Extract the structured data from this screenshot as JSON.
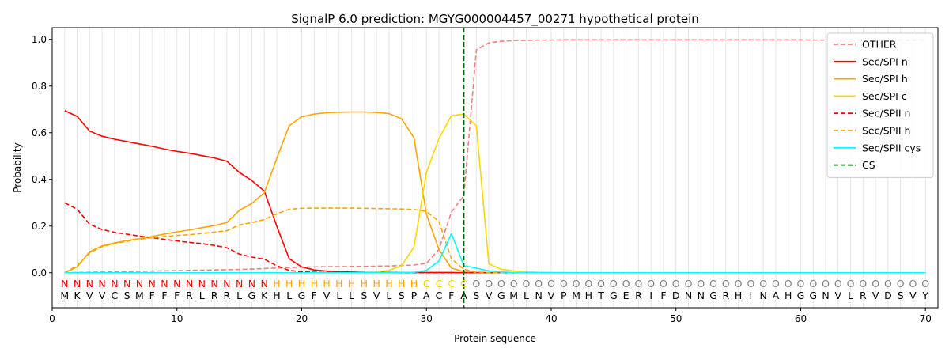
{
  "chart_data": {
    "type": "line",
    "title": "SignalP 6.0 prediction: MGYG000004457_00271 hypothetical protein",
    "xlabel": "Protein sequence",
    "ylabel": "Probability",
    "xlim": [
      0,
      71
    ],
    "ylim": [
      -0.15,
      1.05
    ],
    "x_ticks": [
      0,
      10,
      20,
      30,
      40,
      50,
      60,
      70
    ],
    "y_ticks": [
      0.0,
      0.2,
      0.4,
      0.6,
      0.8,
      1.0
    ],
    "y_tick_labels": [
      "0.0",
      "0.2",
      "0.4",
      "0.6",
      "0.8",
      "1.0"
    ],
    "grid": "vertical lines at each residue",
    "legend_position": "top-right",
    "sequence": "MKVVCSMFFFRLRRLGKHLGFVLLSVLSPACFASVGMLNVPMHTGERIFDNNGRHINAHGGNVLRVDSVY",
    "annotation": "NNNNNNNNNNNNNNNNNHHHHHHHHHHHHCCCCOOOOOOOOOOOOOOOOOOOOOOOOOOOOOOOOOOOOO",
    "annotation_colors": {
      "N": "#ff0000",
      "H": "#ffa500",
      "C": "#ffd700",
      "O": "#808080"
    },
    "cs_position": 33,
    "series": [
      {
        "name": "OTHER",
        "color": "#f08080",
        "dash": "dashed",
        "values": [
          0.0,
          0.001,
          0.002,
          0.003,
          0.004,
          0.005,
          0.006,
          0.007,
          0.008,
          0.009,
          0.01,
          0.011,
          0.012,
          0.013,
          0.014,
          0.016,
          0.018,
          0.02,
          0.022,
          0.024,
          0.025,
          0.026,
          0.026,
          0.027,
          0.027,
          0.028,
          0.029,
          0.031,
          0.033,
          0.04,
          0.1,
          0.26,
          0.33,
          0.955,
          0.985,
          0.992,
          0.995,
          0.996,
          0.997,
          0.997,
          0.998,
          0.998,
          0.998,
          0.998,
          0.998,
          0.998,
          0.998,
          0.998,
          0.998,
          0.998,
          0.998,
          0.998,
          0.998,
          0.998,
          0.998,
          0.998,
          0.998,
          0.998,
          0.998,
          0.998,
          0.997,
          0.997,
          0.997,
          0.997,
          0.997,
          0.997,
          0.997,
          0.997,
          0.997,
          0.997
        ]
      },
      {
        "name": "Sec/SPI n",
        "color": "#ff0000",
        "dash": "solid",
        "values": [
          0.695,
          0.67,
          0.607,
          0.585,
          0.572,
          0.562,
          0.552,
          0.542,
          0.53,
          0.52,
          0.512,
          0.502,
          0.492,
          0.478,
          0.43,
          0.395,
          0.35,
          0.2,
          0.06,
          0.025,
          0.012,
          0.007,
          0.004,
          0.003,
          0.002,
          0.002,
          0.001,
          0.001,
          0.001,
          0.001,
          0.001,
          0.001,
          0.0,
          0.0,
          0.0,
          0.0,
          0.0,
          0.0,
          0.0,
          0.0,
          0.0,
          0.0,
          0.0,
          0.0,
          0.0,
          0.0,
          0.0,
          0.0,
          0.0,
          0.0,
          0.0,
          0.0,
          0.0,
          0.0,
          0.0,
          0.0,
          0.0,
          0.0,
          0.0,
          0.0,
          0.0,
          0.0,
          0.0,
          0.0,
          0.0,
          0.0,
          0.0,
          0.0,
          0.0,
          0.0
        ]
      },
      {
        "name": "Sec/SPI h",
        "color": "#ffa500",
        "dash": "solid",
        "values": [
          0.0,
          0.025,
          0.09,
          0.115,
          0.128,
          0.138,
          0.146,
          0.155,
          0.166,
          0.175,
          0.183,
          0.193,
          0.202,
          0.215,
          0.267,
          0.297,
          0.342,
          0.49,
          0.63,
          0.668,
          0.68,
          0.686,
          0.688,
          0.689,
          0.689,
          0.687,
          0.682,
          0.66,
          0.578,
          0.25,
          0.1,
          0.02,
          0.005,
          0.002,
          0.001,
          0.0,
          0.0,
          0.0,
          0.0,
          0.0,
          0.0,
          0.0,
          0.0,
          0.0,
          0.0,
          0.0,
          0.0,
          0.0,
          0.0,
          0.0,
          0.0,
          0.0,
          0.0,
          0.0,
          0.0,
          0.0,
          0.0,
          0.0,
          0.0,
          0.0,
          0.0,
          0.0,
          0.0,
          0.0,
          0.0,
          0.0,
          0.0,
          0.0,
          0.0,
          0.0
        ]
      },
      {
        "name": "Sec/SPI c",
        "color": "#ffd700",
        "dash": "solid",
        "values": [
          0.0,
          0.0,
          0.0,
          0.0,
          0.0,
          0.0,
          0.0,
          0.0,
          0.0,
          0.0,
          0.0,
          0.0,
          0.0,
          0.0,
          0.0,
          0.0,
          0.0,
          0.0,
          0.0,
          0.0,
          0.0,
          0.0,
          0.0,
          0.0,
          0.001,
          0.004,
          0.01,
          0.03,
          0.11,
          0.43,
          0.575,
          0.673,
          0.68,
          0.63,
          0.038,
          0.015,
          0.008,
          0.004,
          0.002,
          0.001,
          0.001,
          0.0,
          0.0,
          0.0,
          0.0,
          0.0,
          0.0,
          0.0,
          0.0,
          0.0,
          0.0,
          0.0,
          0.0,
          0.0,
          0.0,
          0.0,
          0.0,
          0.0,
          0.0,
          0.0,
          0.0,
          0.0,
          0.0,
          0.0,
          0.0,
          0.0,
          0.0,
          0.0,
          0.0,
          0.0
        ]
      },
      {
        "name": "Sec/SPII n",
        "color": "#ff0000",
        "dash": "dashed",
        "values": [
          0.3,
          0.272,
          0.208,
          0.185,
          0.173,
          0.165,
          0.157,
          0.15,
          0.143,
          0.136,
          0.13,
          0.125,
          0.117,
          0.107,
          0.08,
          0.067,
          0.058,
          0.03,
          0.01,
          0.004,
          0.002,
          0.001,
          0.001,
          0.0,
          0.0,
          0.0,
          0.0,
          0.0,
          0.0,
          0.0,
          0.0,
          0.0,
          0.0,
          0.0,
          0.0,
          0.0,
          0.0,
          0.0,
          0.0,
          0.0,
          0.0,
          0.0,
          0.0,
          0.0,
          0.0,
          0.0,
          0.0,
          0.0,
          0.0,
          0.0,
          0.0,
          0.0,
          0.0,
          0.0,
          0.0,
          0.0,
          0.0,
          0.0,
          0.0,
          0.0,
          0.0,
          0.0,
          0.0,
          0.0,
          0.0,
          0.0,
          0.0,
          0.0,
          0.0,
          0.0
        ]
      },
      {
        "name": "Sec/SPII h",
        "color": "#ffa500",
        "dash": "dashed",
        "values": [
          0.0,
          0.03,
          0.085,
          0.112,
          0.125,
          0.135,
          0.143,
          0.15,
          0.155,
          0.16,
          0.163,
          0.168,
          0.174,
          0.18,
          0.205,
          0.215,
          0.228,
          0.252,
          0.272,
          0.276,
          0.277,
          0.277,
          0.277,
          0.277,
          0.276,
          0.275,
          0.274,
          0.273,
          0.271,
          0.262,
          0.22,
          0.06,
          0.015,
          0.003,
          0.001,
          0.0,
          0.0,
          0.0,
          0.0,
          0.0,
          0.0,
          0.0,
          0.0,
          0.0,
          0.0,
          0.0,
          0.0,
          0.0,
          0.0,
          0.0,
          0.0,
          0.0,
          0.0,
          0.0,
          0.0,
          0.0,
          0.0,
          0.0,
          0.0,
          0.0,
          0.0,
          0.0,
          0.0,
          0.0,
          0.0,
          0.0,
          0.0,
          0.0,
          0.0,
          0.0
        ]
      },
      {
        "name": "Sec/SPII cys",
        "color": "#00ffff",
        "dash": "solid",
        "values": [
          0.0,
          0.0,
          0.0,
          0.0,
          0.0,
          0.0,
          0.0,
          0.0,
          0.0,
          0.0,
          0.0,
          0.0,
          0.0,
          0.0,
          0.0,
          0.0,
          0.0,
          0.0,
          0.0,
          0.0,
          0.0,
          0.0,
          0.0,
          0.0,
          0.0,
          0.0,
          0.0,
          0.001,
          0.002,
          0.01,
          0.05,
          0.167,
          0.03,
          0.02,
          0.008,
          0.003,
          0.001,
          0.0,
          0.0,
          0.0,
          0.0,
          0.0,
          0.0,
          0.0,
          0.0,
          0.0,
          0.0,
          0.0,
          0.0,
          0.0,
          0.0,
          0.0,
          0.0,
          0.0,
          0.0,
          0.0,
          0.0,
          0.0,
          0.0,
          0.0,
          0.0,
          0.0,
          0.0,
          0.0,
          0.0,
          0.0,
          0.0,
          0.0,
          0.0,
          0.0
        ]
      }
    ],
    "cs_legend": {
      "name": "CS",
      "color": "#006400",
      "dash": "dashed"
    }
  }
}
